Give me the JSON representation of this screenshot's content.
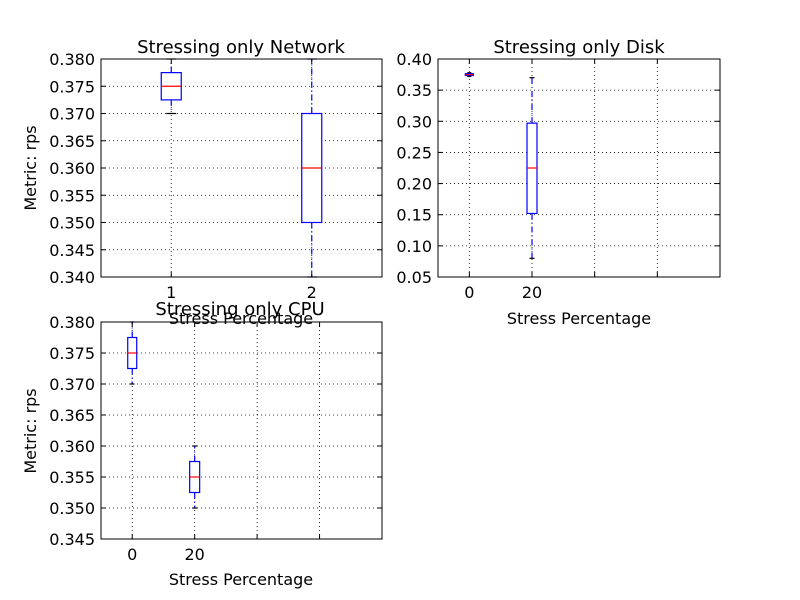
{
  "chart_data": [
    {
      "type": "box",
      "title": "Stressing only Network",
      "xlabel": "Stress Percentage",
      "ylabel": "Metric: rps",
      "ylim": [
        0.34,
        0.38
      ],
      "yticks": [
        "0.340",
        "0.345",
        "0.350",
        "0.355",
        "0.360",
        "0.365",
        "0.370",
        "0.375",
        "0.380"
      ],
      "x_positions": [
        1,
        2
      ],
      "xtick_labels": [
        "1",
        "2"
      ],
      "boxes": [
        {
          "x": 1,
          "whisker_low": 0.37,
          "q1": 0.3725,
          "median": 0.375,
          "q3": 0.3775,
          "whisker_high": 0.38
        },
        {
          "x": 2,
          "whisker_low": 0.34,
          "q1": 0.35,
          "median": 0.36,
          "q3": 0.37,
          "whisker_high": 0.38
        }
      ],
      "grid": true
    },
    {
      "type": "box",
      "title": "Stressing only Disk",
      "xlabel": "Stress Percentage",
      "ylabel": "",
      "ylim": [
        0.05,
        0.4
      ],
      "yticks": [
        "0.05",
        "0.10",
        "0.15",
        "0.20",
        "0.25",
        "0.30",
        "0.35",
        "0.40"
      ],
      "x_positions": [
        0,
        20
      ],
      "xtick_labels": [
        "0",
        "20"
      ],
      "boxes": [
        {
          "x": 0,
          "whisker_low": 0.372,
          "q1": 0.3735,
          "median": 0.375,
          "q3": 0.3765,
          "whisker_high": 0.378
        },
        {
          "x": 20,
          "whisker_low": 0.08,
          "q1": 0.152,
          "median": 0.225,
          "q3": 0.297,
          "whisker_high": 0.37
        }
      ],
      "grid": true
    },
    {
      "type": "box",
      "title": "Stressing only CPU",
      "xlabel": "Stress Percentage",
      "ylabel": "Metric: rps",
      "ylim": [
        0.345,
        0.38
      ],
      "yticks": [
        "0.345",
        "0.350",
        "0.355",
        "0.360",
        "0.365",
        "0.370",
        "0.375",
        "0.380"
      ],
      "x_positions": [
        0,
        20
      ],
      "xtick_labels": [
        "0",
        "20"
      ],
      "boxes": [
        {
          "x": 0,
          "whisker_low": 0.37,
          "q1": 0.3725,
          "median": 0.375,
          "q3": 0.3775,
          "whisker_high": 0.38
        },
        {
          "x": 20,
          "whisker_low": 0.35,
          "q1": 0.3525,
          "median": 0.355,
          "q3": 0.3575,
          "whisker_high": 0.36
        }
      ],
      "grid": true
    }
  ],
  "colors": {
    "box": "#0000ff",
    "median": "#ff0000",
    "whisker": "#0000ff",
    "cap": "#000000",
    "grid": "#000000"
  }
}
